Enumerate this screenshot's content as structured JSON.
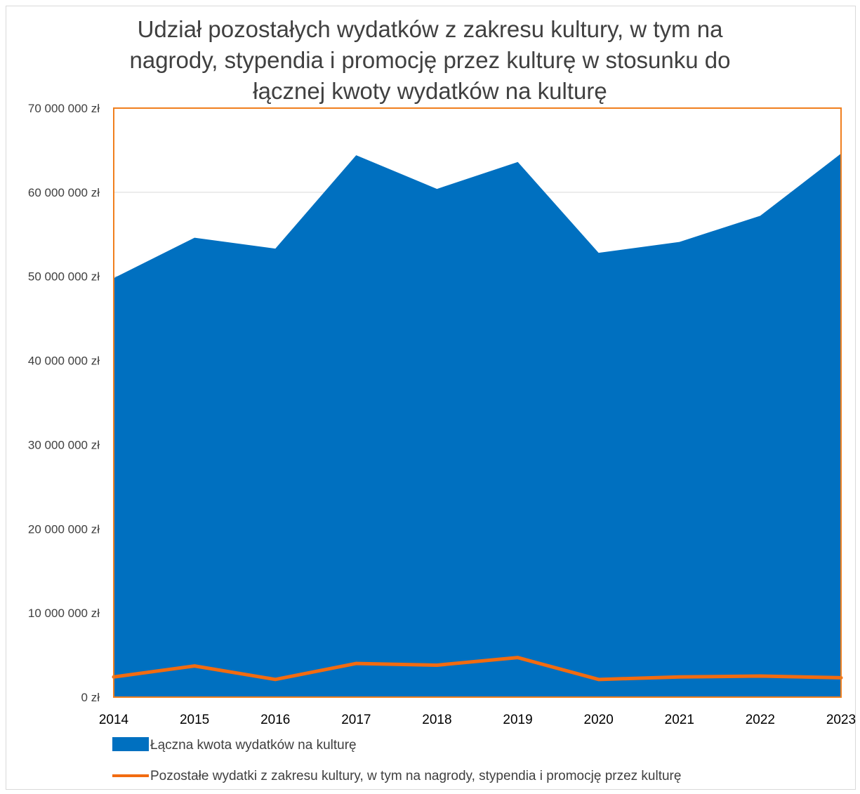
{
  "chart_data": {
    "type": "area",
    "title": "Udział pozostałych wydatków z zakresu kultury, w tym na nagrody, stypendia i promocję przez kulturę w stosunku do łącznej kwoty wydatków na kulturę",
    "title_lines": [
      "Udział pozostałych wydatków z zakresu kultury, w tym na",
      "nagrody, stypendia i promocję przez kulturę w stosunku do",
      "łącznej kwoty wydatków na kulturę"
    ],
    "x": [
      "2014",
      "2015",
      "2016",
      "2017",
      "2018",
      "2019",
      "2020",
      "2021",
      "2022",
      "2023"
    ],
    "ylim": [
      0,
      70000000
    ],
    "yticks": [
      0,
      10000000,
      20000000,
      30000000,
      40000000,
      50000000,
      60000000,
      70000000
    ],
    "ytick_labels": [
      "0 zł",
      "10 000 000 zł",
      "20 000 000 zł",
      "30 000 000 zł",
      "40 000 000 zł",
      "50 000 000 zł",
      "60 000 000 zł",
      "70 000 000 zł"
    ],
    "grid": true,
    "legend_position": "bottom",
    "series": [
      {
        "name": "Łączna kwota wydatków na kulturę",
        "kind": "area",
        "color": "#0070C0",
        "values": [
          49800000,
          54600000,
          53300000,
          64400000,
          60400000,
          63600000,
          52800000,
          54100000,
          57200000,
          64600000
        ]
      },
      {
        "name": "Pozostałe wydatki z zakresu kultury, w tym na nagrody, stypendia i promocję przez kulturę",
        "kind": "line",
        "color": "#F26B10",
        "values": [
          2400000,
          3700000,
          2100000,
          4000000,
          3800000,
          4700000,
          2100000,
          2400000,
          2500000,
          2300000
        ]
      }
    ],
    "plot_border_color": "#F07F1E"
  }
}
